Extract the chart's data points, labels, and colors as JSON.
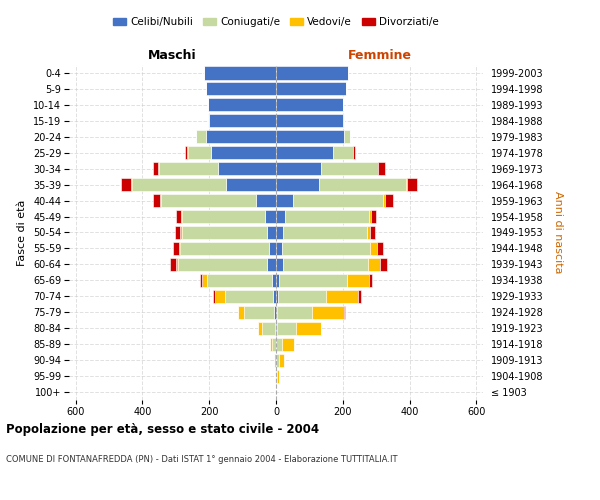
{
  "age_groups": [
    "100+",
    "95-99",
    "90-94",
    "85-89",
    "80-84",
    "75-79",
    "70-74",
    "65-69",
    "60-64",
    "55-59",
    "50-54",
    "45-49",
    "40-44",
    "35-39",
    "30-34",
    "25-29",
    "20-24",
    "15-19",
    "10-14",
    "5-9",
    "0-4"
  ],
  "birth_years": [
    "≤ 1903",
    "1904-1908",
    "1909-1913",
    "1914-1918",
    "1919-1923",
    "1924-1928",
    "1929-1933",
    "1934-1938",
    "1939-1943",
    "1944-1948",
    "1949-1953",
    "1954-1958",
    "1959-1963",
    "1964-1968",
    "1969-1973",
    "1974-1978",
    "1979-1983",
    "1984-1988",
    "1989-1993",
    "1994-1998",
    "1999-2003"
  ],
  "male": {
    "celibi": [
      0,
      0,
      0,
      0,
      3,
      5,
      8,
      12,
      28,
      22,
      28,
      32,
      60,
      150,
      175,
      195,
      210,
      200,
      205,
      210,
      215
    ],
    "coniugati": [
      0,
      2,
      5,
      12,
      40,
      90,
      145,
      195,
      265,
      265,
      255,
      250,
      285,
      280,
      175,
      70,
      30,
      5,
      0,
      0,
      0
    ],
    "vedovi": [
      0,
      0,
      0,
      5,
      10,
      20,
      30,
      15,
      8,
      5,
      5,
      3,
      3,
      3,
      2,
      2,
      0,
      0,
      0,
      0,
      0
    ],
    "divorziati": [
      0,
      0,
      0,
      0,
      0,
      0,
      5,
      5,
      15,
      18,
      15,
      15,
      20,
      30,
      15,
      5,
      0,
      0,
      0,
      0,
      0
    ]
  },
  "female": {
    "nubili": [
      0,
      0,
      0,
      0,
      3,
      3,
      5,
      8,
      22,
      18,
      22,
      28,
      50,
      130,
      135,
      170,
      205,
      200,
      200,
      210,
      215
    ],
    "coniugate": [
      0,
      3,
      8,
      18,
      58,
      105,
      145,
      205,
      255,
      265,
      250,
      250,
      270,
      260,
      170,
      60,
      18,
      5,
      0,
      0,
      0
    ],
    "vedove": [
      0,
      5,
      15,
      35,
      75,
      95,
      95,
      65,
      35,
      20,
      10,
      8,
      5,
      3,
      2,
      2,
      0,
      0,
      0,
      0,
      0
    ],
    "divorziate": [
      0,
      0,
      0,
      0,
      0,
      5,
      10,
      10,
      20,
      18,
      15,
      15,
      25,
      30,
      20,
      5,
      0,
      0,
      0,
      0,
      0
    ]
  },
  "colors": {
    "celibi": "#4472c4",
    "coniugati": "#c5d9a0",
    "vedovi": "#ffc000",
    "divorziati": "#cc0000"
  },
  "xlim": 620,
  "title": "Popolazione per età, sesso e stato civile - 2004",
  "subtitle": "COMUNE DI FONTANAFREDDA (PN) - Dati ISTAT 1° gennaio 2004 - Elaborazione TUTTITALIA.IT",
  "ylabel_left": "Fasce di età",
  "ylabel_right": "Anni di nascita",
  "header_left": "Maschi",
  "header_right": "Femmine",
  "legend_labels": [
    "Celibi/Nubili",
    "Coniugati/e",
    "Vedovi/e",
    "Divorziati/e"
  ]
}
